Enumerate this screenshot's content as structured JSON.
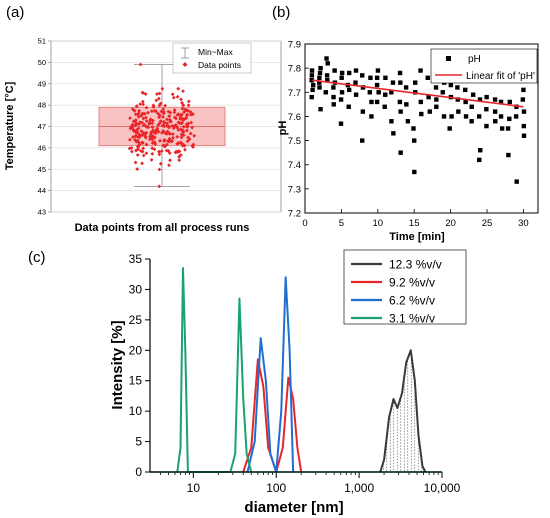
{
  "panels": {
    "a": "(a)",
    "b": "(b)",
    "c": "(c)"
  },
  "chart_data": [
    {
      "type": "box",
      "xlabel": "Data points from all process runs",
      "ylabel": "Temperature [°C]",
      "ylim": [
        43,
        51
      ],
      "yticks": [
        43,
        44,
        45,
        46,
        47,
        48,
        49,
        50,
        51
      ],
      "grid": true,
      "legend": {
        "placement": "top-right",
        "entries": [
          "Min~Max",
          "Data points"
        ]
      },
      "box": {
        "min": 44.2,
        "q1": 46.1,
        "median": 47.0,
        "q3": 47.9,
        "max": 49.9
      },
      "data_points": {
        "count": 300,
        "range": [
          44.2,
          49.9
        ],
        "color": "#e8262a"
      },
      "colors": {
        "box_fill": "#f8b8b8",
        "box_edge": "#e07070",
        "points": "#e8262a"
      }
    },
    {
      "type": "scatter",
      "xlabel": "Time [min]",
      "ylabel": "pH",
      "xlim": [
        0,
        32
      ],
      "ylim": [
        7.2,
        7.9
      ],
      "xticks": [
        0,
        5,
        10,
        15,
        20,
        25,
        30
      ],
      "yticks": [
        7.2,
        7.3,
        7.4,
        7.5,
        7.6,
        7.7,
        7.8,
        7.9
      ],
      "legend": {
        "placement": "top-right",
        "entries": [
          "pH",
          "Linear fit of 'pH'"
        ]
      },
      "series": [
        {
          "name": "pH",
          "marker": "square",
          "color": "#000000",
          "x": [
            1,
            1,
            1,
            1,
            1,
            1,
            2,
            2,
            2,
            2,
            2,
            2,
            3,
            3,
            3,
            3,
            3,
            4,
            4,
            4,
            4,
            4,
            5,
            5,
            5,
            5,
            5,
            6,
            6,
            6,
            6,
            7,
            7,
            7,
            8,
            8,
            8,
            8,
            9,
            9,
            9,
            9,
            10,
            10,
            10,
            10,
            10,
            11,
            11,
            11,
            12,
            12,
            12,
            12,
            13,
            13,
            13,
            13,
            13,
            14,
            14,
            14,
            15,
            15,
            15,
            15,
            15,
            16,
            16,
            16,
            17,
            17,
            17,
            18,
            18,
            18,
            19,
            19,
            19,
            20,
            20,
            20,
            20,
            21,
            21,
            21,
            22,
            22,
            22,
            23,
            23,
            23,
            24,
            24,
            24,
            24,
            25,
            25,
            25,
            26,
            26,
            26,
            27,
            27,
            27,
            28,
            28,
            28,
            28,
            29,
            29,
            29,
            30,
            30,
            30,
            30,
            30
          ],
          "y": [
            7.77,
            7.75,
            7.73,
            7.79,
            7.71,
            7.68,
            7.8,
            7.76,
            7.74,
            7.72,
            7.63,
            7.78,
            7.84,
            7.77,
            7.75,
            7.7,
            7.82,
            7.79,
            7.74,
            7.72,
            7.68,
            7.65,
            7.78,
            7.76,
            7.7,
            7.67,
            7.57,
            7.78,
            7.73,
            7.71,
            7.64,
            7.79,
            7.74,
            7.69,
            7.77,
            7.72,
            7.62,
            7.5,
            7.76,
            7.7,
            7.66,
            7.6,
            7.79,
            7.76,
            7.73,
            7.7,
            7.66,
            7.76,
            7.69,
            7.64,
            7.74,
            7.7,
            7.58,
            7.53,
            7.78,
            7.74,
            7.66,
            7.62,
            7.45,
            7.72,
            7.65,
            7.58,
            7.74,
            7.7,
            7.55,
            7.5,
            7.37,
            7.79,
            7.66,
            7.61,
            7.76,
            7.68,
            7.62,
            7.72,
            7.67,
            7.64,
            7.74,
            7.7,
            7.6,
            7.73,
            7.68,
            7.6,
            7.55,
            7.72,
            7.67,
            7.62,
            7.71,
            7.66,
            7.6,
            7.69,
            7.64,
            7.58,
            7.67,
            7.6,
            7.46,
            7.42,
            7.68,
            7.63,
            7.56,
            7.67,
            7.62,
            7.58,
            7.66,
            7.6,
            7.55,
            7.66,
            7.59,
            7.55,
            7.44,
            7.64,
            7.6,
            7.33,
            7.71,
            7.67,
            7.62,
            7.56,
            7.52
          ]
        },
        {
          "name": "Linear fit of 'pH'",
          "type": "line",
          "color": "#e8262a",
          "x": [
            1,
            30
          ],
          "y": [
            7.75,
            7.64
          ]
        }
      ]
    },
    {
      "type": "line",
      "xlabel": "diameter [nm]",
      "ylabel": "Intensity [%]",
      "xscale": "log",
      "xlim": [
        3,
        10000
      ],
      "ylim": [
        0,
        35
      ],
      "xticks": [
        10,
        100,
        1000,
        10000
      ],
      "xticklabels": [
        "10",
        "100",
        "1,000",
        "10,000"
      ],
      "yticks": [
        0,
        5,
        10,
        15,
        20,
        25,
        30,
        35
      ],
      "legend": {
        "placement": "top-right"
      },
      "series": [
        {
          "name": "12.3 %v/v",
          "color": "#3a3a3a",
          "hatched": true,
          "x": [
            1800,
            2000,
            2300,
            2600,
            2900,
            3300,
            3700,
            4200,
            4700,
            5200,
            5800,
            6300
          ],
          "y": [
            0,
            2,
            9,
            12,
            10.5,
            13,
            18,
            20,
            15,
            6,
            1,
            0
          ]
        },
        {
          "name": "9.2 %v/v",
          "color": "#e8262a",
          "x": [
            40,
            50,
            60,
            70,
            80,
            100,
            120,
            140,
            160,
            180,
            200
          ],
          "y": [
            0,
            4,
            18.5,
            14,
            4,
            0,
            4,
            15.5,
            12,
            4,
            0
          ]
        },
        {
          "name": "6.2 %v/v",
          "color": "#1f6fd1",
          "x": [
            45,
            55,
            65,
            75,
            85,
            100,
            115,
            130,
            145,
            160
          ],
          "y": [
            0,
            5,
            22,
            15,
            3,
            0,
            10,
            32,
            20,
            0
          ]
        },
        {
          "name": "3.1 %v/v",
          "color": "#1aa36e",
          "x": [
            6.4,
            7,
            7.5,
            8,
            8.6,
            28,
            32,
            36,
            40,
            44,
            50
          ],
          "y": [
            0,
            4,
            33.5,
            20,
            0,
            0,
            3,
            28.5,
            12,
            3,
            0
          ]
        }
      ]
    }
  ]
}
